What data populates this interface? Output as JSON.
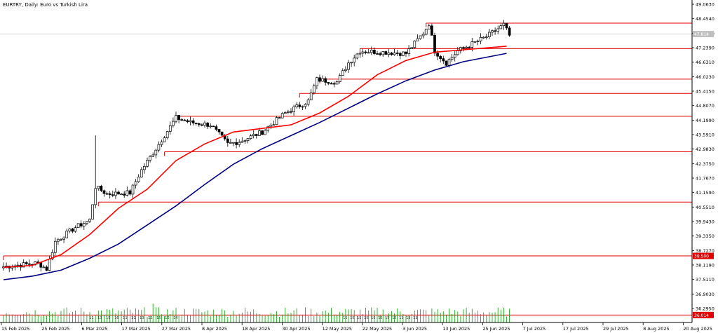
{
  "chart_data": {
    "type": "candlestick",
    "title": "EURTRY, Daily:  Euro vs Turkish Lira",
    "price_ticks": [
      49.063,
      48.454,
      47.847,
      47.239,
      46.631,
      46.023,
      45.415,
      44.807,
      44.199,
      43.591,
      42.983,
      42.375,
      41.767,
      41.159,
      40.551,
      39.943,
      39.335,
      38.727,
      38.119,
      37.511,
      36.903,
      36.295
    ],
    "ylim": [
      36.0,
      49.2
    ],
    "current_price_label": "47.814",
    "left_tag_label": "38.500",
    "bottom_tag_label": "36.014",
    "date_ticks": [
      "15 Feb 2025",
      "25 Feb 2025",
      "6 Mar 2025",
      "17 Mar 2025",
      "27 Mar 2025",
      "8 Apr 2025",
      "18 Apr 2025",
      "30 Apr 2025",
      "12 May 2025",
      "22 May 2025",
      "3 Jun 2025",
      "13 Jun 2025",
      "25 Jun 2025",
      "7 Jul 2025",
      "17 Jul 2025",
      "29 Jul 2025",
      "8 Aug 2025",
      "20 Aug 2025"
    ],
    "horizontal_levels": [
      48.27,
      47.2,
      45.92,
      45.32,
      44.36,
      42.87,
      40.76,
      38.5
    ],
    "ma_fast": {
      "color": "#ff0000",
      "points": [
        [
          0,
          38.02
        ],
        [
          10,
          38.1
        ],
        [
          20,
          38.55
        ],
        [
          30,
          39.4
        ],
        [
          40,
          40.5
        ],
        [
          50,
          41.3
        ],
        [
          60,
          42.5
        ],
        [
          70,
          43.2
        ],
        [
          80,
          43.7
        ],
        [
          90,
          43.85
        ],
        [
          100,
          44.0
        ],
        [
          110,
          44.5
        ],
        [
          120,
          45.2
        ],
        [
          130,
          46.1
        ],
        [
          140,
          46.7
        ],
        [
          150,
          47.05
        ],
        [
          160,
          47.15
        ],
        [
          175,
          47.3
        ]
      ]
    },
    "ma_slow": {
      "color": "#000080",
      "points": [
        [
          0,
          37.5
        ],
        [
          10,
          37.65
        ],
        [
          20,
          37.9
        ],
        [
          30,
          38.4
        ],
        [
          40,
          39.0
        ],
        [
          50,
          39.8
        ],
        [
          60,
          40.6
        ],
        [
          70,
          41.5
        ],
        [
          80,
          42.35
        ],
        [
          90,
          43.0
        ],
        [
          100,
          43.55
        ],
        [
          110,
          44.1
        ],
        [
          120,
          44.7
        ],
        [
          130,
          45.3
        ],
        [
          140,
          45.85
        ],
        [
          150,
          46.3
        ],
        [
          160,
          46.65
        ],
        [
          175,
          47.0
        ]
      ]
    },
    "volume_labels": [
      "11",
      "13",
      "15",
      "16",
      "11",
      "11",
      "13",
      "12",
      "15",
      "15",
      "14",
      "15",
      "15",
      "15",
      "15",
      "15",
      "15",
      "15",
      "15",
      "13",
      "13",
      "13"
    ]
  }
}
